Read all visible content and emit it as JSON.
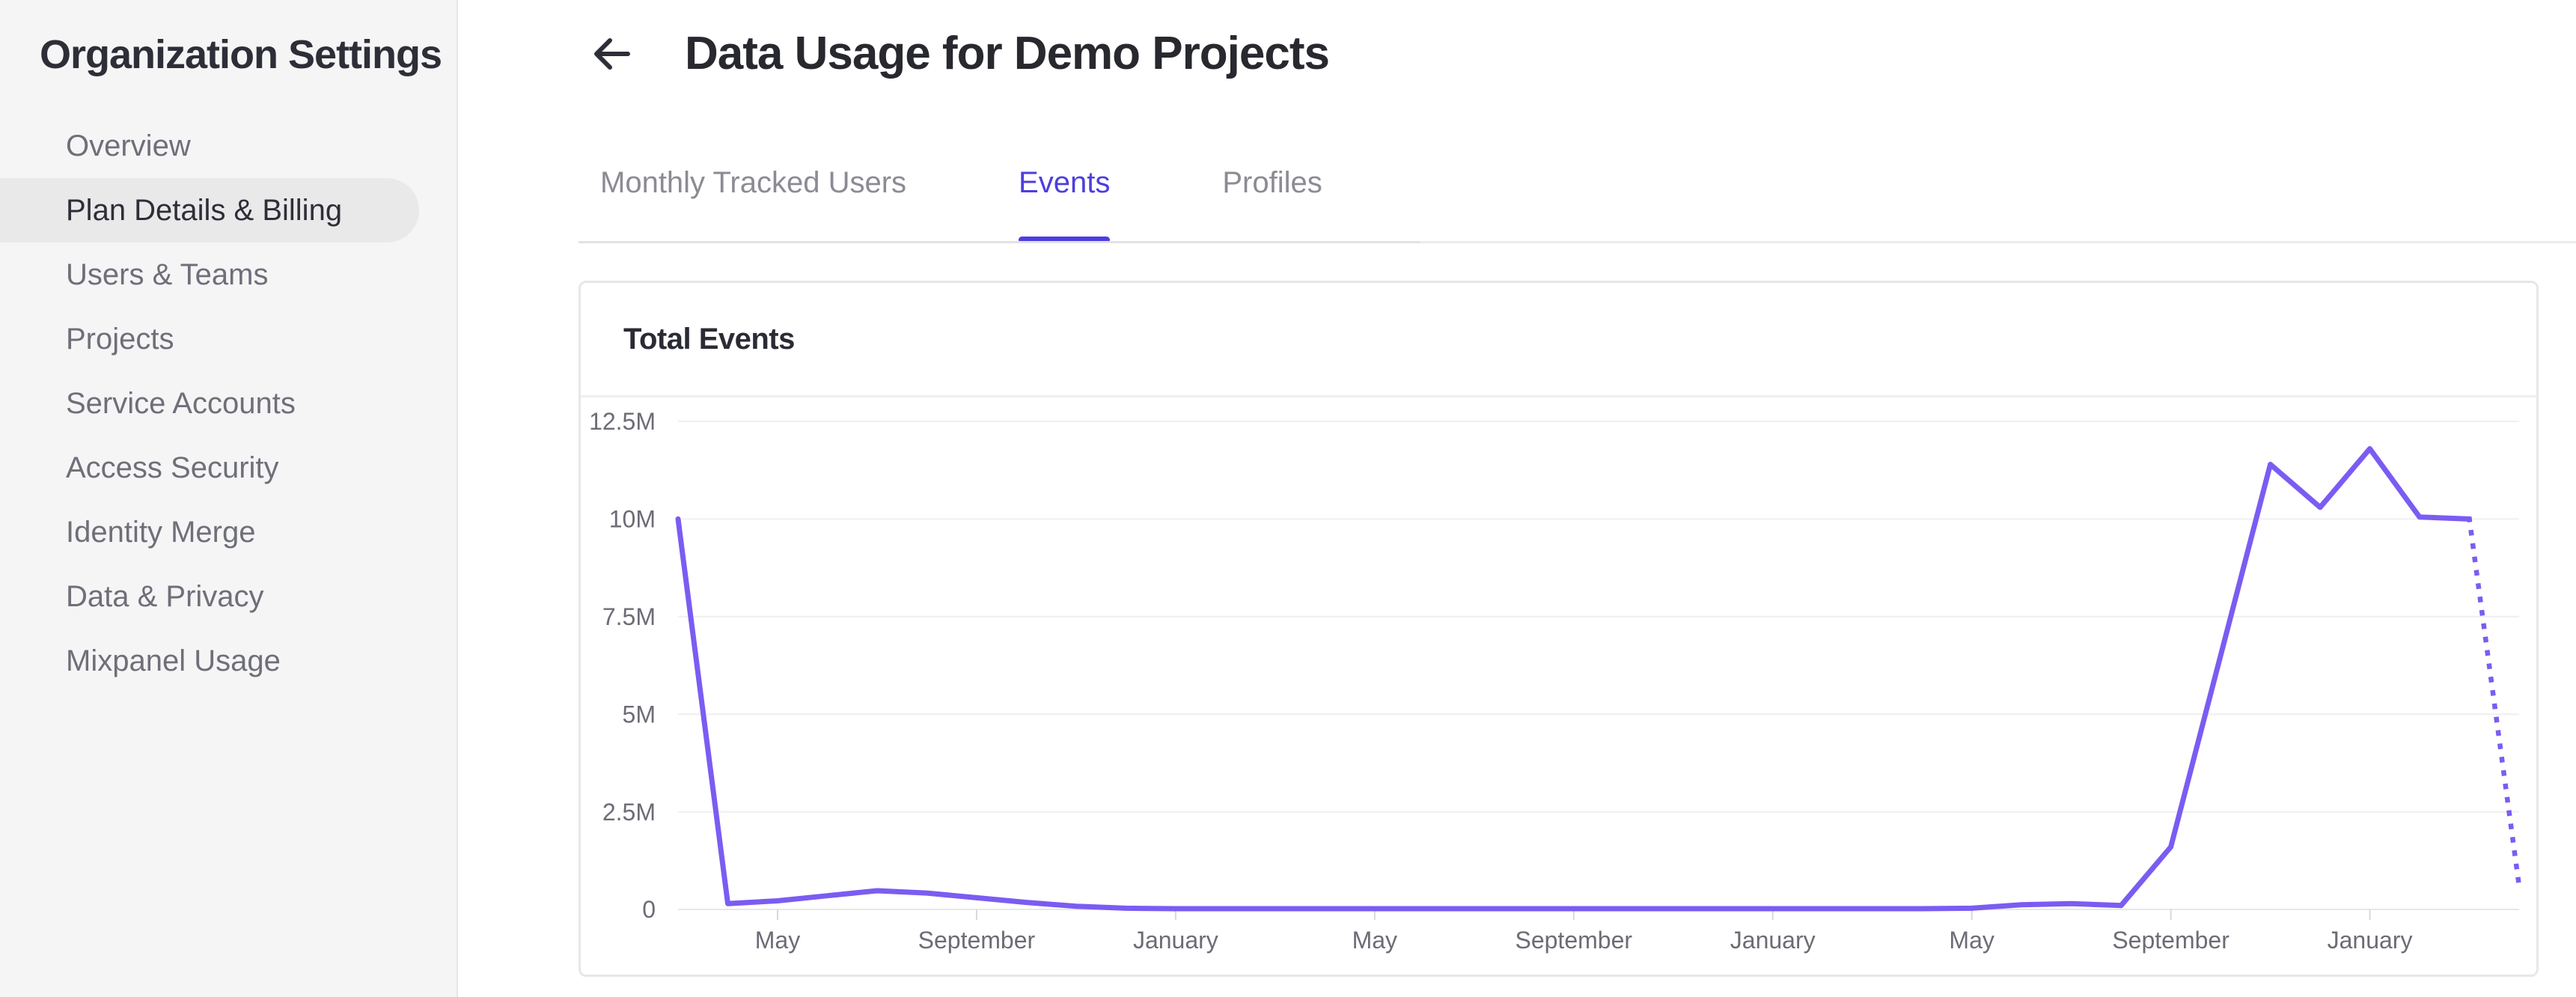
{
  "sidebar": {
    "title": "Organization Settings",
    "items": [
      {
        "label": "Overview",
        "selected": false
      },
      {
        "label": "Plan Details & Billing",
        "selected": true
      },
      {
        "label": "Users & Teams",
        "selected": false
      },
      {
        "label": "Projects",
        "selected": false
      },
      {
        "label": "Service Accounts",
        "selected": false
      },
      {
        "label": "Access Security",
        "selected": false
      },
      {
        "label": "Identity Merge",
        "selected": false
      },
      {
        "label": "Data & Privacy",
        "selected": false
      },
      {
        "label": "Mixpanel Usage",
        "selected": false
      }
    ]
  },
  "header": {
    "title": "Data Usage for Demo Projects",
    "back_icon": "arrow-left"
  },
  "tabs": [
    {
      "label": "Monthly Tracked Users",
      "active": false
    },
    {
      "label": "Events",
      "active": true
    },
    {
      "label": "Profiles",
      "active": false
    }
  ],
  "colors": {
    "accent": "#4c3ee0",
    "line": "#7b5cf2",
    "gridline": "#efeff1",
    "zero_line": "#e7e7ea",
    "tick": "#d8d8dc",
    "axis_text": "#6c6c75"
  },
  "chart_data": {
    "type": "line",
    "title": "Total Events",
    "series_name": "Total Events",
    "y_tick_labels": [
      "12.5M",
      "10M",
      "7.5M",
      "5M",
      "2.5M",
      "0"
    ],
    "ylim_millions": [
      0,
      12.5
    ],
    "x_tick_indices": [
      2,
      6,
      10,
      14,
      18,
      22,
      26,
      30,
      34
    ],
    "x_tick_labels": [
      "May",
      "September",
      "January",
      "May",
      "September",
      "January",
      "May",
      "September",
      "January"
    ],
    "values_millions": [
      10.0,
      0.15,
      0.22,
      0.35,
      0.48,
      0.42,
      0.3,
      0.18,
      0.08,
      0.03,
      0.02,
      0.02,
      0.02,
      0.02,
      0.02,
      0.02,
      0.02,
      0.02,
      0.02,
      0.02,
      0.02,
      0.02,
      0.02,
      0.02,
      0.02,
      0.02,
      0.03,
      0.12,
      0.15,
      0.1,
      1.6,
      6.5,
      11.4,
      10.3,
      11.8,
      10.05,
      10.0,
      0.6
    ],
    "dotted_from_index": 36,
    "grid": "horizontal",
    "legend": "none"
  }
}
